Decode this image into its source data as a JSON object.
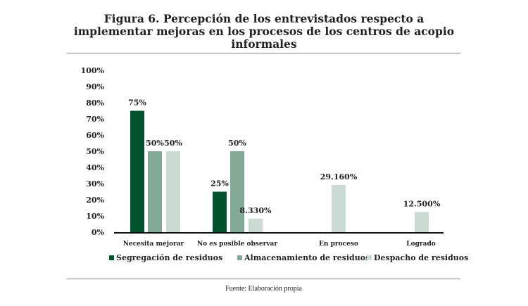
{
  "figure": {
    "title_lines": [
      "Figura 6. Percepción de los entrevistados respecto a",
      "implementar mejoras en los procesos de los centros de acopio",
      "informales"
    ],
    "source": "Fuente: Elaboración propia"
  },
  "chart_data": {
    "type": "bar",
    "title": "Figura 6. Percepción de los entrevistados respecto a implementar mejoras en los procesos de los centros de acopio informales",
    "xlabel": "",
    "ylabel": "",
    "categories": [
      "Necesita mejorar",
      "No es posible observar",
      "En proceso",
      "Logrado"
    ],
    "yticks": [
      "0%",
      "10%",
      "20%",
      "30%",
      "40%",
      "50%",
      "60%",
      "70%",
      "80%",
      "90%",
      "100%"
    ],
    "ylim": [
      0,
      100
    ],
    "grid": false,
    "legend_position": "bottom",
    "series": [
      {
        "name": "Segregación de residuos",
        "color": "#00532D",
        "values": [
          75,
          25,
          null,
          null
        ],
        "labels": [
          "75%",
          "25%",
          "",
          ""
        ]
      },
      {
        "name": "Almacenamiento de residuos",
        "color": "#82A896",
        "values": [
          50,
          50,
          null,
          null
        ],
        "labels": [
          "50%",
          "50%",
          "",
          ""
        ]
      },
      {
        "name": "Despacho de residuos",
        "color": "#CBDBD3",
        "values": [
          50,
          8.33,
          29.16,
          12.5
        ],
        "labels": [
          "50%",
          "8.330%",
          "29.160%",
          "12.500%"
        ]
      }
    ]
  }
}
